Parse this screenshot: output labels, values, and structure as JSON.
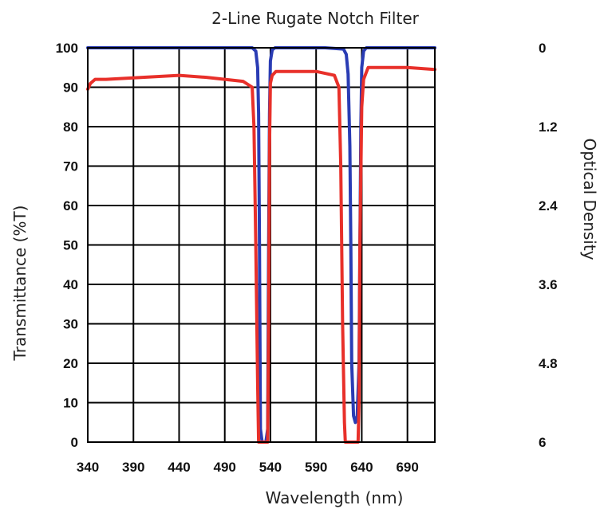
{
  "chart_data": {
    "type": "line",
    "title": "2-Line Rugate Notch Filter",
    "xlabel": "Wavelength (nm)",
    "ylabel": "Transmittance (%T)",
    "y2label": "Optical Density",
    "xlim": [
      340,
      720
    ],
    "ylim": [
      0,
      100
    ],
    "y2lim": [
      0,
      6
    ],
    "y2_inverted": true,
    "grid": true,
    "x_ticks": [
      340,
      390,
      440,
      490,
      540,
      590,
      640,
      690
    ],
    "y_ticks": [
      0,
      10,
      20,
      30,
      40,
      50,
      60,
      70,
      80,
      90,
      100
    ],
    "y2_ticks": [
      "0",
      "1.2",
      "2.4",
      "3.6",
      "4.8",
      "6"
    ],
    "series": [
      {
        "color": "#2a3cb4",
        "axis": "right",
        "x": [
          340,
          500,
          520,
          524,
          526,
          527,
          528,
          529,
          531,
          533,
          535,
          537,
          538,
          539,
          540,
          542,
          545,
          560,
          600,
          620,
          623,
          625,
          627,
          628,
          629,
          631,
          633,
          635,
          637,
          638,
          639,
          640,
          642,
          645,
          720
        ],
        "y": [
          0,
          0,
          0,
          0.05,
          0.3,
          1.0,
          3.0,
          5.8,
          6,
          6,
          6,
          5.8,
          3.0,
          1.0,
          0.2,
          0.03,
          0,
          0,
          0,
          0.02,
          0.1,
          0.4,
          1.5,
          3.0,
          4.8,
          5.6,
          5.7,
          5.6,
          4.8,
          3.0,
          1.2,
          0.3,
          0.05,
          0,
          0
        ]
      },
      {
        "color": "#e8302a",
        "axis": "left",
        "x": [
          340,
          343,
          348,
          360,
          400,
          440,
          470,
          490,
          510,
          520,
          522,
          524,
          526,
          527,
          537,
          538,
          539,
          540,
          542,
          546,
          560,
          590,
          610,
          615,
          617,
          619,
          621,
          622,
          636,
          637,
          638,
          640,
          642,
          647,
          660,
          690,
          720
        ],
        "y": [
          89.5,
          91,
          92,
          92,
          92.5,
          93,
          92.5,
          92,
          91.5,
          90,
          80,
          50,
          15,
          0,
          0,
          30,
          75,
          91,
          93,
          94,
          94,
          94,
          93,
          90,
          70,
          30,
          5,
          0,
          0,
          10,
          50,
          85,
          92,
          95,
          95,
          95,
          94.5
        ]
      }
    ]
  }
}
